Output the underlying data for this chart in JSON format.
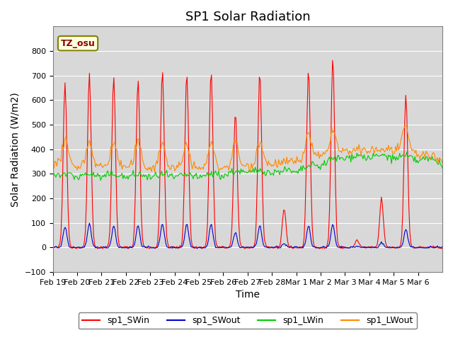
{
  "title": "SP1 Solar Radiation",
  "xlabel": "Time",
  "ylabel": "Solar Radiation (W/m2)",
  "ylim": [
    -100,
    900
  ],
  "yticks": [
    -100,
    0,
    100,
    200,
    300,
    400,
    500,
    600,
    700,
    800
  ],
  "xtick_labels": [
    "Feb 19",
    "Feb 20",
    "Feb 21",
    "Feb 22",
    "Feb 23",
    "Feb 24",
    "Feb 25",
    "Feb 26",
    "Feb 27",
    "Feb 28",
    "Mar 1",
    "Mar 2",
    "Mar 3",
    "Mar 4",
    "Mar 5",
    "Mar 6"
  ],
  "colors": {
    "SWin": "#ff0000",
    "SWout": "#0000cc",
    "LWin": "#00cc00",
    "LWout": "#ff8800"
  },
  "legend_labels": [
    "sp1_SWin",
    "sp1_SWout",
    "sp1_LWin",
    "sp1_LWout"
  ],
  "tz_label": "TZ_osu",
  "background_color": "#d8d8d8",
  "title_fontsize": 13,
  "axis_label_fontsize": 10,
  "tick_fontsize": 8,
  "SWin_peaks": [
    670,
    710,
    695,
    685,
    720,
    710,
    715,
    545,
    715,
    160,
    720,
    770,
    30,
    200,
    625,
    0
  ],
  "SWout_peaks": [
    85,
    95,
    90,
    90,
    95,
    95,
    95,
    60,
    90,
    15,
    90,
    95,
    5,
    20,
    75,
    0
  ],
  "lwin_base_x": [
    0,
    6,
    8,
    10,
    12,
    14,
    16
  ],
  "lwin_base_y": [
    285,
    280,
    300,
    300,
    360,
    360,
    340
  ],
  "lwout_base_x": [
    0,
    6,
    8,
    10,
    12,
    14,
    16
  ],
  "lwout_base_y": [
    335,
    320,
    330,
    350,
    390,
    400,
    360
  ]
}
